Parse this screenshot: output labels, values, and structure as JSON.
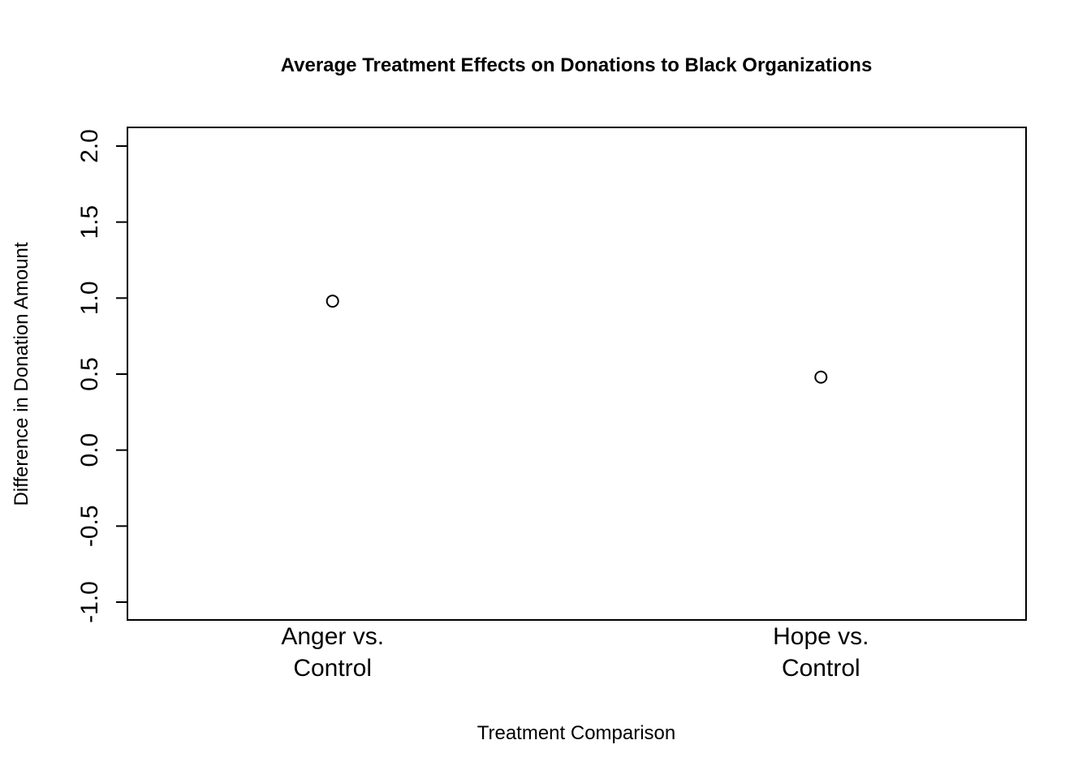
{
  "chart_data": {
    "type": "scatter",
    "title": "Average Treatment Effects on Donations to Black Organizations",
    "xlabel": "Treatment Comparison",
    "ylabel": "Difference in Donation Amount",
    "categories": [
      [
        "Anger vs.",
        "Control"
      ],
      [
        "Hope vs.",
        "Control"
      ]
    ],
    "values": [
      0.98,
      0.48
    ],
    "ylim": [
      -1.0,
      2.0
    ],
    "yticks": [
      "-1.0",
      "-0.5",
      "0.0",
      "0.5",
      "1.0",
      "1.5",
      "2.0"
    ],
    "grid": false,
    "legend": "none",
    "marker": "open-circle",
    "colors": {
      "ink": "#000000",
      "background": "#ffffff"
    }
  }
}
